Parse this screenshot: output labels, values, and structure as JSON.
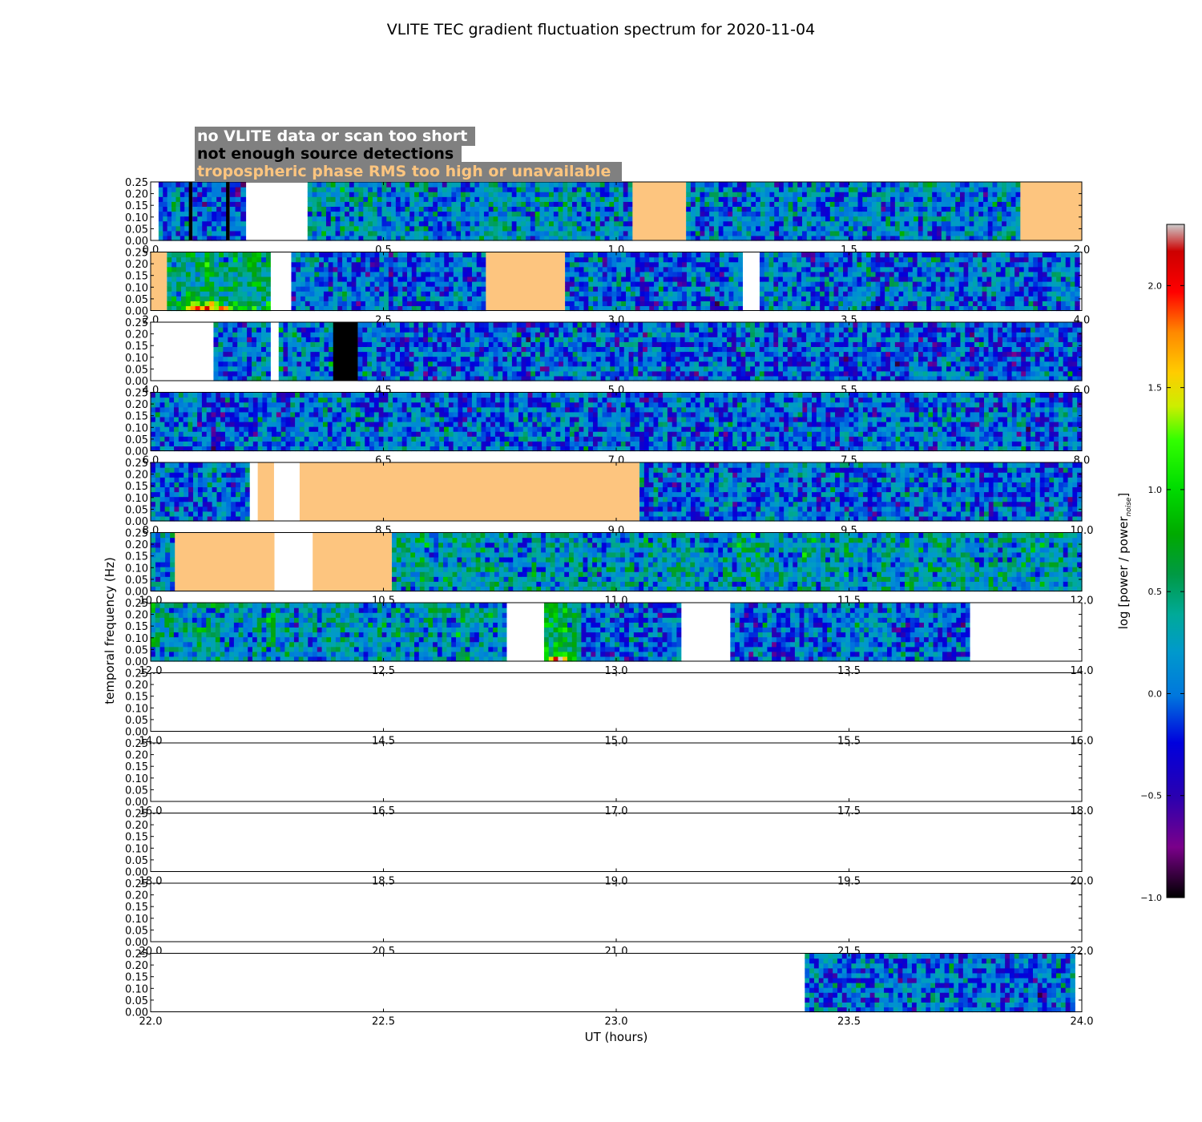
{
  "chart_data": {
    "type": "heatmap",
    "title": "VLITE TEC gradient fluctuation spectrum for 2020-11-04",
    "xlabel": "UT (hours)",
    "ylabel": "temporal frequency (Hz)",
    "colorbar": {
      "label_main": "log [power / power",
      "label_sub": "noise",
      "label_close": "]",
      "range": [
        -1.0,
        2.3
      ],
      "ticks": [
        2.0,
        1.5,
        1.0,
        0.5,
        0.0,
        -0.5,
        -1.0
      ],
      "tick_labels": [
        "2.0",
        "1.5",
        "1.0",
        "0.5",
        "0.0",
        "−0.5",
        "−1.0"
      ],
      "colormap": "nipy_spectral"
    },
    "legend": {
      "placement": "above top panel",
      "entries": [
        {
          "label": "no VLITE data or scan too short",
          "color": "#ffffff"
        },
        {
          "label": "not enough source detections",
          "color": "#000000"
        },
        {
          "label": "tropospheric phase RMS too high or unavailable",
          "color": "#fdc57f"
        }
      ],
      "box_color": "#808080"
    },
    "ylim": [
      0.0,
      0.25
    ],
    "y_ticks": [
      0.0,
      0.05,
      0.1,
      0.15,
      0.2,
      0.25
    ],
    "y_tick_labels": [
      "0.00",
      "0.05",
      "0.10",
      "0.15",
      "0.20",
      "0.25"
    ],
    "x_tick_step": 0.5,
    "panels": [
      {
        "xlim": [
          0.0,
          2.0
        ],
        "x_tick_labels": [
          "0.0",
          "0.5",
          "1.0",
          "1.5",
          "2.0"
        ],
        "segments": [
          {
            "type": "white",
            "start": 0.0,
            "end": 0.017
          },
          {
            "type": "data",
            "start": 0.017,
            "end": 0.082,
            "level": 0.0
          },
          {
            "type": "black",
            "start": 0.082,
            "end": 0.09
          },
          {
            "type": "data",
            "start": 0.09,
            "end": 0.162,
            "level": -0.1
          },
          {
            "type": "black",
            "start": 0.162,
            "end": 0.17
          },
          {
            "type": "data",
            "start": 0.17,
            "end": 0.205,
            "level": 0.0
          },
          {
            "type": "white",
            "start": 0.205,
            "end": 0.337
          },
          {
            "type": "data",
            "start": 0.337,
            "end": 1.035,
            "level": 0.15
          },
          {
            "type": "orange",
            "start": 1.035,
            "end": 1.15
          },
          {
            "type": "data",
            "start": 1.15,
            "end": 1.868,
            "level": 0.1
          },
          {
            "type": "orange",
            "start": 1.868,
            "end": 2.0
          }
        ]
      },
      {
        "xlim": [
          2.0,
          4.0
        ],
        "x_tick_labels": [
          "2.0",
          "2.5",
          "3.0",
          "3.5",
          "4.0"
        ],
        "segments": [
          {
            "type": "orange",
            "start": 2.0,
            "end": 2.035
          },
          {
            "type": "data",
            "start": 2.035,
            "end": 2.258,
            "level": 0.5,
            "low_freq_boost": 1.3
          },
          {
            "type": "white",
            "start": 2.258,
            "end": 2.302
          },
          {
            "type": "data",
            "start": 2.302,
            "end": 2.72,
            "level": 0.0
          },
          {
            "type": "orange",
            "start": 2.72,
            "end": 2.89
          },
          {
            "type": "data",
            "start": 2.89,
            "end": 3.272,
            "level": 0.0
          },
          {
            "type": "white",
            "start": 3.272,
            "end": 3.308
          },
          {
            "type": "data",
            "start": 3.308,
            "end": 3.995,
            "level": 0.0
          }
        ]
      },
      {
        "xlim": [
          4.0,
          6.0
        ],
        "x_tick_labels": [
          "4.0",
          "4.5",
          "5.0",
          "5.5",
          "6.0"
        ],
        "segments": [
          {
            "type": "white",
            "start": 4.0,
            "end": 4.135
          },
          {
            "type": "data",
            "start": 4.135,
            "end": 4.258,
            "level": 0.1
          },
          {
            "type": "white",
            "start": 4.258,
            "end": 4.275
          },
          {
            "type": "data",
            "start": 4.275,
            "end": 4.392,
            "level": 0.1
          },
          {
            "type": "black",
            "start": 4.392,
            "end": 4.445
          },
          {
            "type": "data",
            "start": 4.445,
            "end": 6.0,
            "level": -0.05
          }
        ]
      },
      {
        "xlim": [
          6.0,
          8.0
        ],
        "x_tick_labels": [
          "6.0",
          "6.5",
          "7.0",
          "7.5",
          "8.0"
        ],
        "segments": [
          {
            "type": "data",
            "start": 6.0,
            "end": 8.0,
            "level": 0.0
          }
        ]
      },
      {
        "xlim": [
          8.0,
          10.0
        ],
        "x_tick_labels": [
          "8.0",
          "8.5",
          "9.0",
          "9.5",
          "10.0"
        ],
        "segments": [
          {
            "type": "data",
            "start": 8.0,
            "end": 8.213,
            "level": 0.05
          },
          {
            "type": "white",
            "start": 8.213,
            "end": 8.23
          },
          {
            "type": "orange",
            "start": 8.23,
            "end": 8.265
          },
          {
            "type": "white",
            "start": 8.265,
            "end": 8.32
          },
          {
            "type": "orange",
            "start": 8.32,
            "end": 9.05
          },
          {
            "type": "data",
            "start": 9.05,
            "end": 10.0,
            "level": 0.0
          }
        ]
      },
      {
        "xlim": [
          10.0,
          12.0
        ],
        "x_tick_labels": [
          "10.0",
          "10.5",
          "11.0",
          "11.5",
          "12.0"
        ],
        "segments": [
          {
            "type": "data",
            "start": 10.0,
            "end": 10.052,
            "level": 0.1
          },
          {
            "type": "orange",
            "start": 10.052,
            "end": 10.266
          },
          {
            "type": "white",
            "start": 10.266,
            "end": 10.348
          },
          {
            "type": "orange",
            "start": 10.348,
            "end": 10.518
          },
          {
            "type": "data",
            "start": 10.518,
            "end": 12.0,
            "level": 0.25
          }
        ]
      },
      {
        "xlim": [
          12.0,
          14.0
        ],
        "x_tick_labels": [
          "12.0",
          "12.5",
          "13.0",
          "13.5",
          "14.0"
        ],
        "segments": [
          {
            "type": "data",
            "start": 12.0,
            "end": 12.765,
            "level": 0.25
          },
          {
            "type": "white",
            "start": 12.765,
            "end": 12.845
          },
          {
            "type": "data",
            "start": 12.845,
            "end": 12.925,
            "level": 0.6,
            "low_freq_boost": 1.6
          },
          {
            "type": "data",
            "start": 12.925,
            "end": 13.14,
            "level": 0.0
          },
          {
            "type": "white",
            "start": 13.14,
            "end": 13.245
          },
          {
            "type": "data",
            "start": 13.245,
            "end": 13.76,
            "level": 0.0
          },
          {
            "type": "white",
            "start": 13.76,
            "end": 14.0
          }
        ]
      },
      {
        "xlim": [
          14.0,
          16.0
        ],
        "x_tick_labels": [
          "14.0",
          "14.5",
          "15.0",
          "15.5",
          "16.0"
        ],
        "segments": []
      },
      {
        "xlim": [
          16.0,
          18.0
        ],
        "x_tick_labels": [
          "16.0",
          "16.5",
          "17.0",
          "17.5",
          "18.0"
        ],
        "segments": []
      },
      {
        "xlim": [
          18.0,
          20.0
        ],
        "x_tick_labels": [
          "18.0",
          "18.5",
          "19.0",
          "19.5",
          "20.0"
        ],
        "segments": []
      },
      {
        "xlim": [
          20.0,
          22.0
        ],
        "x_tick_labels": [
          "20.0",
          "20.5",
          "21.0",
          "21.5",
          "22.0"
        ],
        "segments": []
      },
      {
        "xlim": [
          22.0,
          24.0
        ],
        "x_tick_labels": [
          "22.0",
          "22.5",
          "23.0",
          "23.5",
          "24.0"
        ],
        "segments": [
          {
            "type": "white",
            "start": 22.0,
            "end": 23.405
          },
          {
            "type": "data",
            "start": 23.405,
            "end": 23.985,
            "level": 0.0
          }
        ]
      }
    ]
  }
}
